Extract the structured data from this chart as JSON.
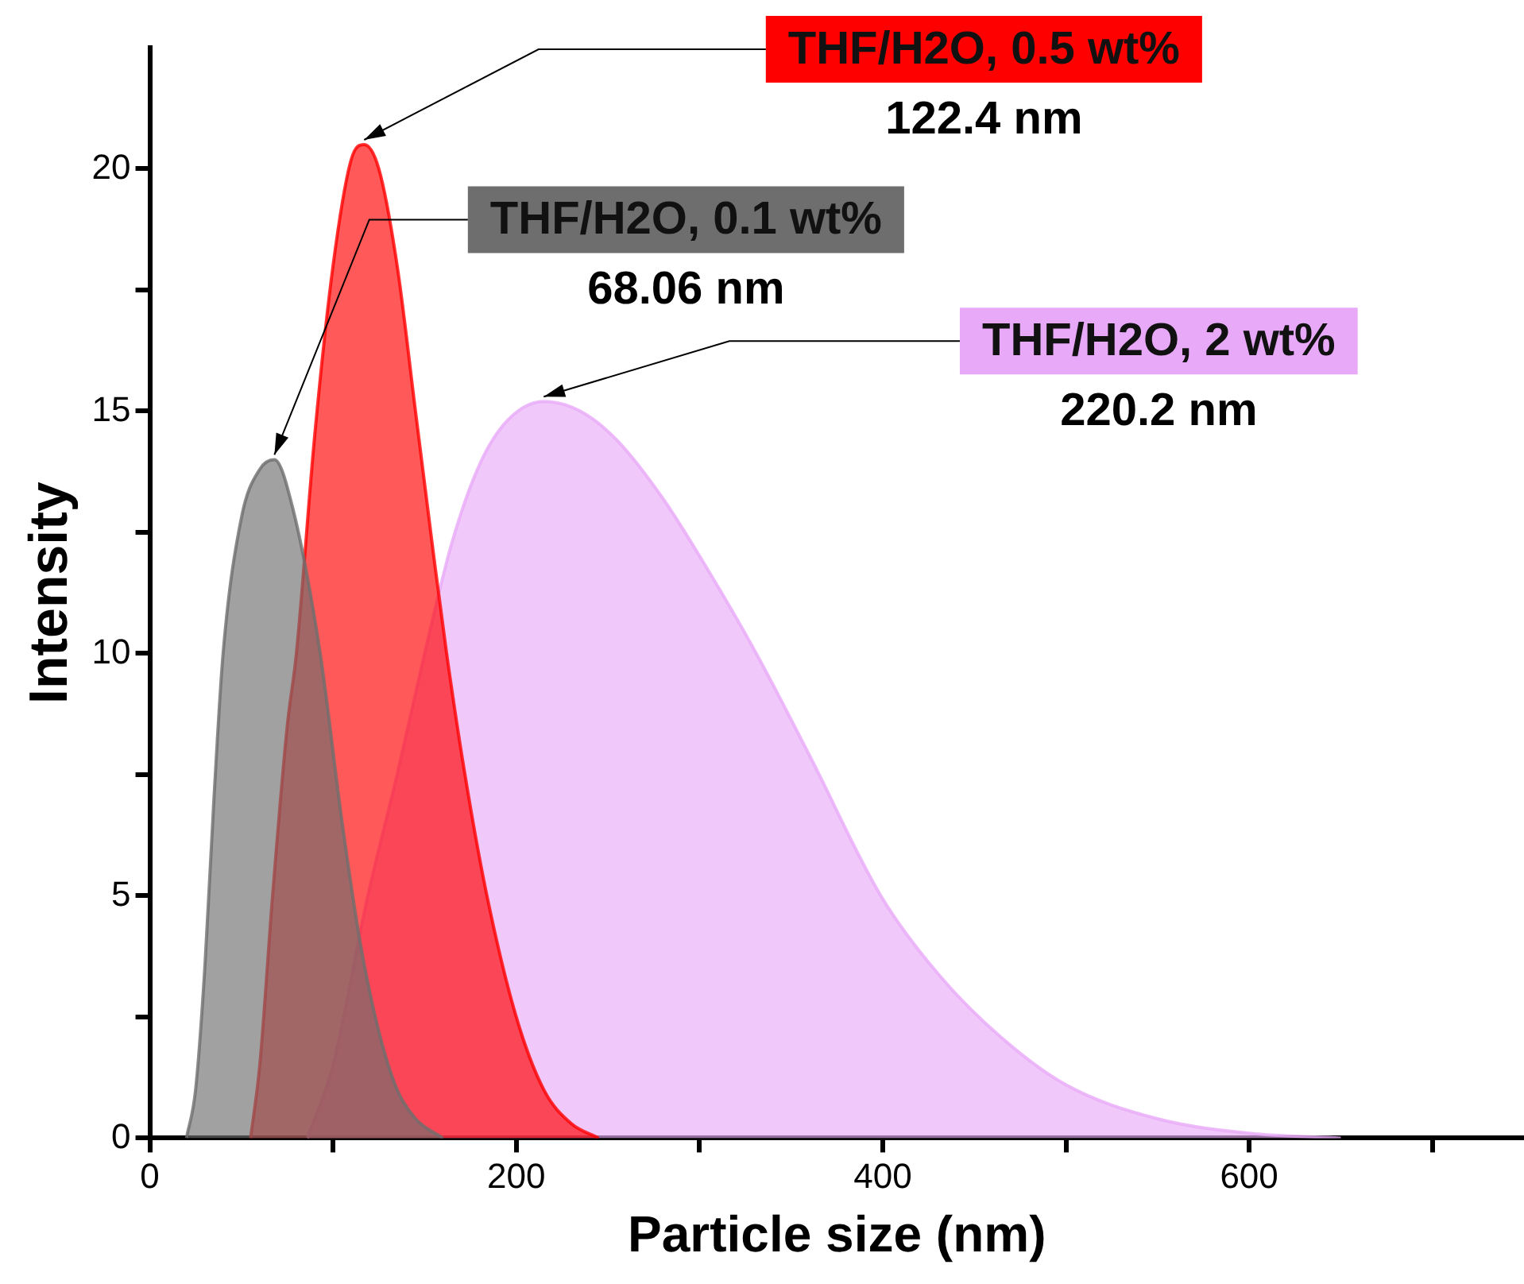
{
  "chart_data": {
    "type": "area",
    "xlabel": "Particle size (nm)",
    "ylabel": "Intensity",
    "xlim": [
      0,
      750
    ],
    "xticks": [
      0,
      {
        "value": 100,
        "label": null
      },
      200,
      {
        "value": 300,
        "label": null
      },
      400,
      {
        "value": 500,
        "label": null
      },
      600,
      {
        "value": 700,
        "label": null
      }
    ],
    "ylim": [
      0,
      22.5
    ],
    "yticks": [
      0,
      {
        "value": 2.5,
        "label": null
      },
      5,
      {
        "value": 7.5,
        "label": null
      },
      10,
      {
        "value": 12.5,
        "label": null
      },
      15,
      {
        "value": 17.5,
        "label": null
      },
      20
    ],
    "grid": false,
    "legend": false,
    "series": [
      {
        "name": "THF/H2O, 0.1 wt%",
        "color": "#6e6e6e",
        "x": [
          20,
          25,
          30,
          35,
          40,
          50,
          60,
          68,
          78,
          93,
          105,
          115,
          125,
          135,
          145,
          160
        ],
        "values": [
          0,
          1,
          3.5,
          7,
          10,
          12.8,
          13.8,
          14,
          13,
          10,
          6.5,
          4,
          2.2,
          1,
          0.4,
          0
        ]
      },
      {
        "name": "THF/H2O, 0.5 wt%",
        "color": "#ff0000",
        "x": [
          55,
          60,
          67,
          75,
          80,
          90,
          100,
          110,
          117,
          125,
          135,
          145,
          155,
          162,
          172,
          184,
          200,
          215,
          230,
          245
        ],
        "values": [
          0,
          1.5,
          5,
          8.5,
          10,
          14.5,
          18,
          20.2,
          20.5,
          20,
          18,
          15,
          12,
          10,
          7.5,
          5,
          2.5,
          1,
          0.3,
          0
        ]
      },
      {
        "name": "THF/H2O, 2 wt%",
        "color": "#e8aaf8",
        "x": [
          86,
          100,
          119,
          135,
          150,
          165,
          180,
          195,
          215,
          235,
          255,
          280,
          305,
          331,
          360,
          399,
          430,
          464,
          500,
          550,
          600,
          650
        ],
        "values": [
          0,
          1.5,
          5,
          7.5,
          10,
          12.3,
          13.9,
          14.8,
          15.2,
          15,
          14.4,
          13.2,
          11.7,
          10,
          7.9,
          5,
          3.4,
          2.1,
          1.1,
          0.4,
          0.1,
          0
        ]
      }
    ],
    "annotations": [
      "68.06 nm",
      "122.4 nm",
      "220.2 nm"
    ]
  }
}
